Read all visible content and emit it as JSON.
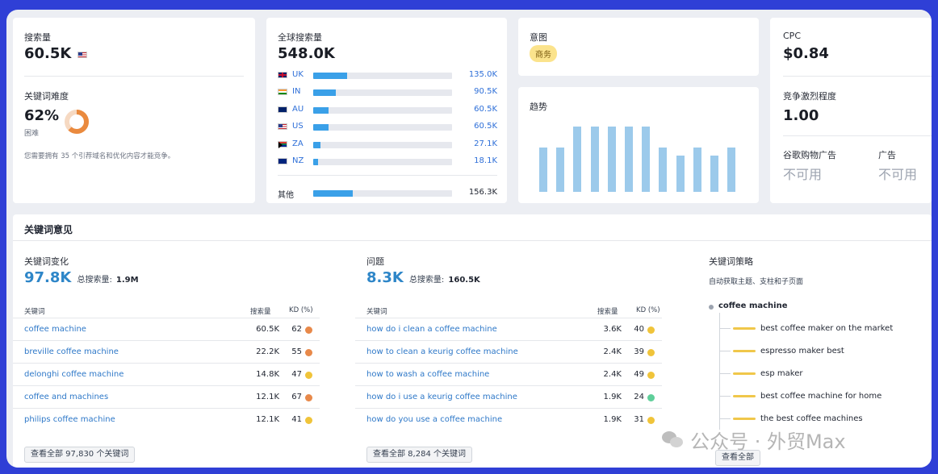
{
  "overview": {
    "volume_label": "搜索量",
    "volume_value": "60.5K",
    "difficulty_label": "关键词难度",
    "difficulty_value": "62%",
    "difficulty_level": "困难",
    "difficulty_percent": 62,
    "difficulty_note": "您需要拥有 35 个引荐域名和优化内容才能竞争。"
  },
  "global": {
    "label": "全球搜索量",
    "value": "548.0K",
    "countries": [
      {
        "code": "UK",
        "flag": "uk-flag-icon",
        "value": "135.0K",
        "share": 0.245
      },
      {
        "code": "IN",
        "flag": "india-flag-icon",
        "value": "90.5K",
        "share": 0.165
      },
      {
        "code": "AU",
        "flag": "australia-flag-icon",
        "value": "60.5K",
        "share": 0.11
      },
      {
        "code": "US",
        "flag": "us-flag-icon",
        "value": "60.5K",
        "share": 0.11
      },
      {
        "code": "ZA",
        "flag": "south-africa-flag-icon",
        "value": "27.1K",
        "share": 0.05
      },
      {
        "code": "NZ",
        "flag": "new-zealand-flag-icon",
        "value": "18.1K",
        "share": 0.035
      }
    ],
    "other_label": "其他",
    "other_value": "156.3K",
    "other_share": 0.285
  },
  "intent": {
    "label": "意图",
    "badge": "商务"
  },
  "trend": {
    "label": "趋势",
    "values": [
      0.61,
      0.61,
      0.9,
      0.9,
      0.9,
      0.9,
      0.9,
      0.61,
      0.5,
      0.61,
      0.5,
      0.61
    ]
  },
  "cpc": {
    "label": "CPC",
    "value": "$0.84",
    "competition_label": "竞争激烈程度",
    "competition_value": "1.00",
    "shopping_label": "谷歌购物广告",
    "shopping_value": "不可用",
    "ads_label": "广告",
    "ads_value": "不可用"
  },
  "ideas": {
    "title": "关键词意见",
    "variations": {
      "title": "关键词变化",
      "count": "97.8K",
      "total_label": "总搜索量:",
      "total_value": "1.9M",
      "col_keyword": "关键词",
      "col_volume": "搜索量",
      "col_kd": "KD (%)",
      "rows": [
        {
          "keyword": "coffee machine",
          "volume": "60.5K",
          "kd": "62",
          "color": "#e8894a"
        },
        {
          "keyword": "breville coffee machine",
          "volume": "22.2K",
          "kd": "55",
          "color": "#e8894a"
        },
        {
          "keyword": "delonghi coffee machine",
          "volume": "14.8K",
          "kd": "47",
          "color": "#f0c43a"
        },
        {
          "keyword": "coffee and machines",
          "volume": "12.1K",
          "kd": "67",
          "color": "#e8894a"
        },
        {
          "keyword": "philips coffee machine",
          "volume": "12.1K",
          "kd": "41",
          "color": "#f0c43a"
        }
      ],
      "view_all": "查看全部 97,830 个关键词"
    },
    "questions": {
      "title": "问题",
      "count": "8.3K",
      "total_label": "总搜索量:",
      "total_value": "160.5K",
      "col_keyword": "关键词",
      "col_volume": "搜索量",
      "col_kd": "KD (%)",
      "rows": [
        {
          "keyword": "how do i clean a coffee machine",
          "volume": "3.6K",
          "kd": "40",
          "color": "#f0c43a"
        },
        {
          "keyword": "how to clean a keurig coffee machine",
          "volume": "2.4K",
          "kd": "39",
          "color": "#f0c43a"
        },
        {
          "keyword": "how to wash a coffee machine",
          "volume": "2.4K",
          "kd": "49",
          "color": "#f0c43a"
        },
        {
          "keyword": "how do i use a keurig coffee machine",
          "volume": "1.9K",
          "kd": "24",
          "color": "#5fcf9a"
        },
        {
          "keyword": "how do you use a coffee machine",
          "volume": "1.9K",
          "kd": "31",
          "color": "#f0c43a"
        }
      ],
      "view_all": "查看全部 8,284 个关键词"
    },
    "strategy": {
      "title": "关键词策略",
      "subtitle": "自动获取主题、支柱和子页面",
      "root": "coffee machine",
      "children": [
        "best coffee maker on the market",
        "espresso maker best",
        "esp maker",
        "best coffee machine for home",
        "the best coffee machines"
      ],
      "view_all": "查看全部"
    }
  },
  "watermark": "公众号 · 外贸Max"
}
